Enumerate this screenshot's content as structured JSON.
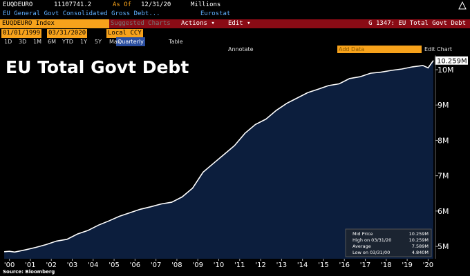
{
  "header": {
    "ticker": "EUQDEURO",
    "last": "11107741.2",
    "as_of_label": "As Of",
    "as_of": "12/31/20",
    "units": "Millions",
    "description": "EU General Govt Consolidated Gross Debt...",
    "source_name": "Eurostat",
    "security": "EUQDEURO Index",
    "suggested": "Suggested Charts",
    "actions": "Actions ▾",
    "edit": "Edit ▾",
    "chart_id": "G 1347: EU Total Govt Debt",
    "start_date": "01/01/1999",
    "end_date": "03/31/2020",
    "currency": "Local CCY",
    "periods": [
      "1D",
      "3D",
      "1M",
      "6M",
      "YTD",
      "1Y",
      "5Y",
      "Max"
    ],
    "frequency": "Quarterly",
    "table": "Table",
    "add_data": "Add Data",
    "edit_chart": "Edit Chart",
    "annotate": "Annotate"
  },
  "chart_data": {
    "type": "line",
    "title": "EU Total Govt Debt",
    "color": "#ffffff",
    "area_color": "#0c1e3d",
    "x": [
      1999.75,
      2000,
      2000.25,
      2000.75,
      2001.25,
      2001.75,
      2002.25,
      2002.75,
      2003.25,
      2003.75,
      2004.25,
      2004.75,
      2005.25,
      2005.75,
      2006.25,
      2006.75,
      2007.25,
      2007.75,
      2008.25,
      2008.75,
      2009.25,
      2009.75,
      2010.25,
      2010.75,
      2011.25,
      2011.75,
      2012.25,
      2012.75,
      2013.25,
      2013.75,
      2014.25,
      2014.75,
      2015.25,
      2015.75,
      2016.25,
      2016.75,
      2017.25,
      2017.75,
      2018.25,
      2018.75,
      2019.25,
      2019.75,
      2020,
      2020.25
    ],
    "values": [
      4.85,
      4.86,
      4.84,
      4.9,
      4.97,
      5.05,
      5.15,
      5.2,
      5.35,
      5.45,
      5.6,
      5.72,
      5.85,
      5.95,
      6.05,
      6.12,
      6.2,
      6.25,
      6.4,
      6.65,
      7.1,
      7.35,
      7.6,
      7.85,
      8.2,
      8.45,
      8.6,
      8.85,
      9.05,
      9.2,
      9.35,
      9.45,
      9.55,
      9.6,
      9.75,
      9.8,
      9.9,
      9.93,
      9.98,
      10.02,
      10.08,
      10.12,
      10.05,
      10.259
    ],
    "last_value_label": "10.259M",
    "xlim": [
      1999.55,
      2020.35
    ],
    "xticks": [
      {
        "value": 2000,
        "label": "'00"
      },
      {
        "value": 2001,
        "label": "'01"
      },
      {
        "value": 2002,
        "label": "'02"
      },
      {
        "value": 2003,
        "label": "'03"
      },
      {
        "value": 2004,
        "label": "'04"
      },
      {
        "value": 2005,
        "label": "'05"
      },
      {
        "value": 2006,
        "label": "'06"
      },
      {
        "value": 2007,
        "label": "'07"
      },
      {
        "value": 2008,
        "label": "'08"
      },
      {
        "value": 2009,
        "label": "'09"
      },
      {
        "value": 2010,
        "label": "'10"
      },
      {
        "value": 2011,
        "label": "'11"
      },
      {
        "value": 2012,
        "label": "'12"
      },
      {
        "value": 2013,
        "label": "'13"
      },
      {
        "value": 2014,
        "label": "'14"
      },
      {
        "value": 2015,
        "label": "'15"
      },
      {
        "value": 2016,
        "label": "'16"
      },
      {
        "value": 2017,
        "label": "'17"
      },
      {
        "value": 2018,
        "label": "'18"
      },
      {
        "value": 2019,
        "label": "'19"
      },
      {
        "value": 2020,
        "label": "'20"
      }
    ],
    "ylim": [
      4.65,
      10.41
    ],
    "yticks": [
      {
        "value": 5,
        "label": "5M"
      },
      {
        "value": 6,
        "label": "6M"
      },
      {
        "value": 7,
        "label": "7M"
      },
      {
        "value": 8,
        "label": "8M"
      },
      {
        "value": 9,
        "label": "9M"
      },
      {
        "value": 10,
        "label": "10M"
      }
    ],
    "legend": [
      {
        "label": "Mid Price",
        "value": "10.259M"
      },
      {
        "label": "High on 03/31/20",
        "value": "10.259M"
      },
      {
        "label": "Average",
        "value": "7.589M"
      },
      {
        "label": "Low on 03/31/00",
        "value": "4.840M"
      }
    ],
    "source": "Source: Bloomberg"
  }
}
